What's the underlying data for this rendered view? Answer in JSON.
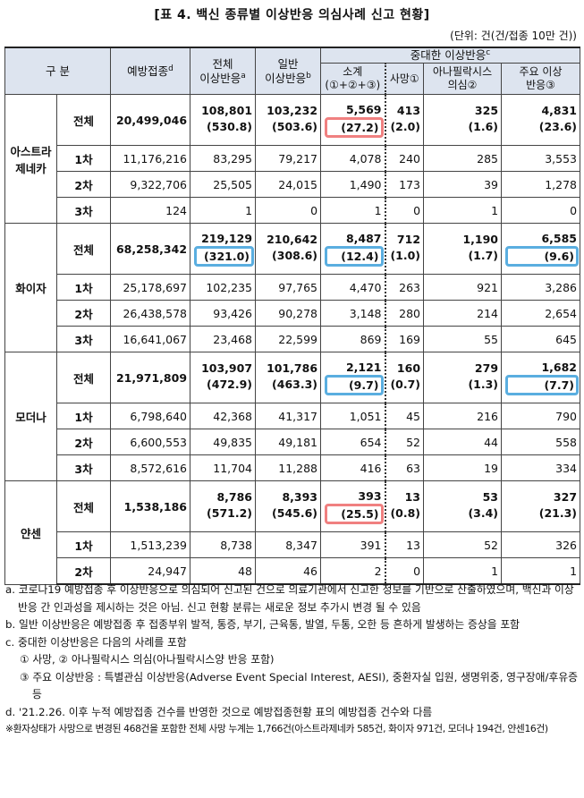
{
  "title": "[표 4. 백신 종류별 이상반응 의심사례 신고 현황]",
  "unit": "(단위: 건(건/접종 10만 건))",
  "table": {
    "header": {
      "group": {
        "lines": [
          "구 분"
        ]
      },
      "vaccinations": {
        "lines": [
          "예방접종"
        ],
        "note": "d"
      },
      "total": {
        "lines": [
          "전체",
          "이상반응"
        ],
        "note": "a"
      },
      "general": {
        "lines": [
          "일반",
          "이상반응"
        ],
        "note": "b"
      },
      "serious": {
        "lines": [
          "중대한 이상반응"
        ],
        "note": "c"
      },
      "subtotal": {
        "lines": [
          "소계",
          "(①+②+③)"
        ]
      },
      "death": {
        "lines": [
          "사망"
        ],
        "mark": "①"
      },
      "anaphylaxis": {
        "lines": [
          "아나필락시스",
          "의심"
        ],
        "mark": "②"
      },
      "major": {
        "lines": [
          "주요 이상",
          "반응"
        ],
        "mark": "③"
      }
    },
    "groups": [
      {
        "name": "아스트라제네카",
        "rows": [
          {
            "dose": "전체",
            "cells": [
              [
                "20,499,046"
              ],
              [
                "108,801",
                "(530.8)"
              ],
              [
                "103,232",
                "(503.6)"
              ],
              [
                "5,569",
                "(27.2)"
              ],
              [
                "413",
                "(2.0)"
              ],
              [
                "325",
                "(1.6)"
              ],
              [
                "4,831",
                "(23.6)"
              ]
            ]
          },
          {
            "dose": "1차",
            "cells": [
              [
                "11,176,216"
              ],
              [
                "83,295"
              ],
              [
                "79,217"
              ],
              [
                "4,078"
              ],
              [
                "240"
              ],
              [
                "285"
              ],
              [
                "3,553"
              ]
            ]
          },
          {
            "dose": "2차",
            "cells": [
              [
                "9,322,706"
              ],
              [
                "25,505"
              ],
              [
                "24,015"
              ],
              [
                "1,490"
              ],
              [
                "173"
              ],
              [
                "39"
              ],
              [
                "1,278"
              ]
            ]
          },
          {
            "dose": "3차",
            "cells": [
              [
                "124"
              ],
              [
                "1"
              ],
              [
                "0"
              ],
              [
                "1"
              ],
              [
                "0"
              ],
              [
                "1"
              ],
              [
                "0"
              ]
            ]
          }
        ]
      },
      {
        "name": "화이자",
        "rows": [
          {
            "dose": "전체",
            "cells": [
              [
                "68,258,342"
              ],
              [
                "219,129",
                "(321.0)"
              ],
              [
                "210,642",
                "(308.6)"
              ],
              [
                "8,487",
                "(12.4)"
              ],
              [
                "712",
                "(1.0)"
              ],
              [
                "1,190",
                "(1.7)"
              ],
              [
                "6,585",
                "(9.6)"
              ]
            ]
          },
          {
            "dose": "1차",
            "cells": [
              [
                "25,178,697"
              ],
              [
                "102,235"
              ],
              [
                "97,765"
              ],
              [
                "4,470"
              ],
              [
                "263"
              ],
              [
                "921"
              ],
              [
                "3,286"
              ]
            ]
          },
          {
            "dose": "2차",
            "cells": [
              [
                "26,438,578"
              ],
              [
                "93,426"
              ],
              [
                "90,278"
              ],
              [
                "3,148"
              ],
              [
                "280"
              ],
              [
                "214"
              ],
              [
                "2,654"
              ]
            ]
          },
          {
            "dose": "3차",
            "cells": [
              [
                "16,641,067"
              ],
              [
                "23,468"
              ],
              [
                "22,599"
              ],
              [
                "869"
              ],
              [
                "169"
              ],
              [
                "55"
              ],
              [
                "645"
              ]
            ]
          }
        ]
      },
      {
        "name": "모더나",
        "rows": [
          {
            "dose": "전체",
            "cells": [
              [
                "21,971,809"
              ],
              [
                "103,907",
                "(472.9)"
              ],
              [
                "101,786",
                "(463.3)"
              ],
              [
                "2,121",
                "(9.7)"
              ],
              [
                "160",
                "(0.7)"
              ],
              [
                "279",
                "(1.3)"
              ],
              [
                "1,682",
                "(7.7)"
              ]
            ]
          },
          {
            "dose": "1차",
            "cells": [
              [
                "6,798,640"
              ],
              [
                "42,368"
              ],
              [
                "41,317"
              ],
              [
                "1,051"
              ],
              [
                "45"
              ],
              [
                "216"
              ],
              [
                "790"
              ]
            ]
          },
          {
            "dose": "2차",
            "cells": [
              [
                "6,600,553"
              ],
              [
                "49,835"
              ],
              [
                "49,181"
              ],
              [
                "654"
              ],
              [
                "52"
              ],
              [
                "44"
              ],
              [
                "558"
              ]
            ]
          },
          {
            "dose": "3차",
            "cells": [
              [
                "8,572,616"
              ],
              [
                "11,704"
              ],
              [
                "11,288"
              ],
              [
                "416"
              ],
              [
                "63"
              ],
              [
                "19"
              ],
              [
                "334"
              ]
            ]
          }
        ]
      },
      {
        "name": "얀센",
        "rows": [
          {
            "dose": "전체",
            "cells": [
              [
                "1,538,186"
              ],
              [
                "8,786",
                "(571.2)"
              ],
              [
                "8,393",
                "(545.6)"
              ],
              [
                "393",
                "(25.5)"
              ],
              [
                "13",
                "(0.8)"
              ],
              [
                "53",
                "(3.4)"
              ],
              [
                "327",
                "(21.3)"
              ]
            ]
          },
          {
            "dose": "1차",
            "cells": [
              [
                "1,513,239"
              ],
              [
                "8,738"
              ],
              [
                "8,347"
              ],
              [
                "391"
              ],
              [
                "13"
              ],
              [
                "52"
              ],
              [
                "326"
              ]
            ]
          },
          {
            "dose": "2차",
            "cells": [
              [
                "24,947"
              ],
              [
                "48"
              ],
              [
                "46"
              ],
              [
                "2"
              ],
              [
                "0"
              ],
              [
                "1"
              ],
              [
                "1"
              ]
            ]
          }
        ]
      }
    ]
  },
  "notes": [
    {
      "label": "a.",
      "text": "코로나19 예방접종 후 이상반응으로 의심되어 신고된 건으로 의료기관에서 신고한 정보를 기반으로 산출하였으며, 백신과 이상반응 간 인과성을 제시하는 것은 아님. 신고 현황 분류는 새로운 정보 추가시 변경 될 수 있음"
    },
    {
      "label": "b.",
      "text": "일반 이상반응은 예방접종 후 접종부위 발적, 통증, 부기, 근육통, 발열, 두통, 오한 등 흔하게 발생하는 증상을 포함"
    },
    {
      "label": "c.",
      "text": "중대한 이상반응은 다음의 사례를 포함",
      "sub": [
        "① 사망, ② 아나필락시스 의심(아나필락시스양 반응 포함)",
        "③ 주요 이상반응 : 특별관심 이상반응(Adverse Event Special Interest, AESI), 중환자실 입원, 생명위중, 영구장애/후유증 등"
      ]
    },
    {
      "label": "d.",
      "text": "'21.2.26. 이후 누적 예방접종 건수를 반영한 것으로 예방접종현황 표의 예방접종 건수와 다름"
    }
  ],
  "remark": "※환자상태가 사망으로 변경된 468건을 포함한 전체 사망 누계는 1,766건(아스트라제네카 585건, 화이자 971건, 모더나 194건, 얀센16건)"
}
